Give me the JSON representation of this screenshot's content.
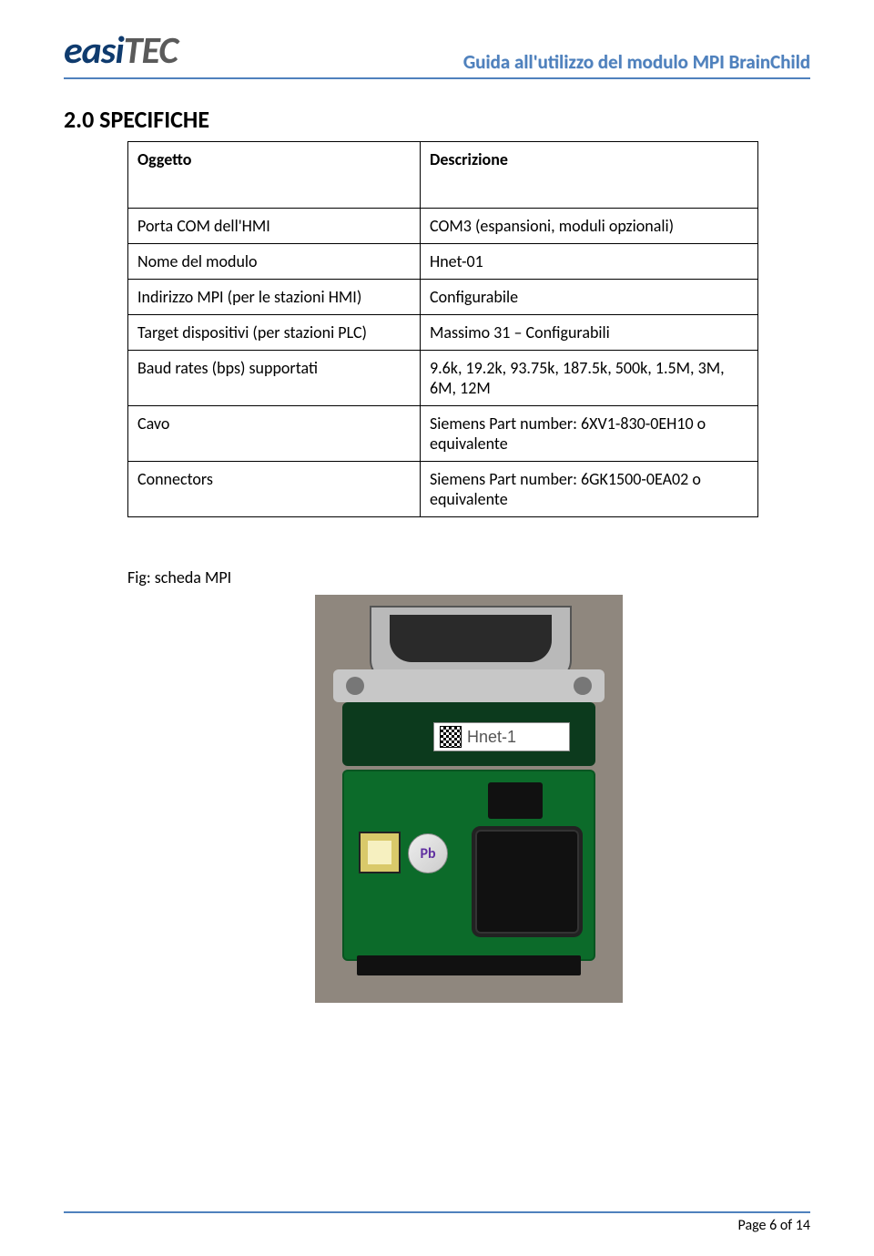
{
  "header": {
    "logo_easi": "easi",
    "logo_tec": "TEC",
    "doc_title": "Guida all'utilizzo del modulo MPI BrainChild"
  },
  "section": {
    "heading": "2.0 SPECIFICHE",
    "table_header_left": "Oggetto",
    "table_header_right": "Descrizione",
    "rows": [
      {
        "left": "Porta COM dell'HMI",
        "right": "COM3 (espansioni, moduli opzionali)"
      },
      {
        "left": "Nome del modulo",
        "right": "Hnet-01"
      },
      {
        "left": "Indirizzo MPI (per le stazioni HMI)",
        "right": "Configurabile"
      },
      {
        "left": "Target dispositivi (per stazioni PLC)",
        "right": "Massimo  31 – Configurabili"
      },
      {
        "left": "Baud rates (bps) supportati",
        "right": "9.6k, 19.2k, 93.75k, 187.5k, 500k,  1.5M, 3M, 6M, 12M"
      },
      {
        "left": "Cavo",
        "right": "Siemens Part number: 6XV1-830-0EH10 o equivalente"
      },
      {
        "left": "Connectors",
        "right": "Siemens Part number:  6GK1500-0EA02 o equivalente"
      }
    ],
    "fig_caption": "Fig: scheda MPI",
    "pcb_label": "Hnet-1",
    "pb_label": "Pb"
  },
  "footer": {
    "page": "Page 6 of 14"
  },
  "colors": {
    "rule": "#4f81bd",
    "header_text": "#4f81bd",
    "pcb_green": "#0c6b2a",
    "pcb_dark": "#0c3a1d",
    "bg": "#ffffff"
  }
}
